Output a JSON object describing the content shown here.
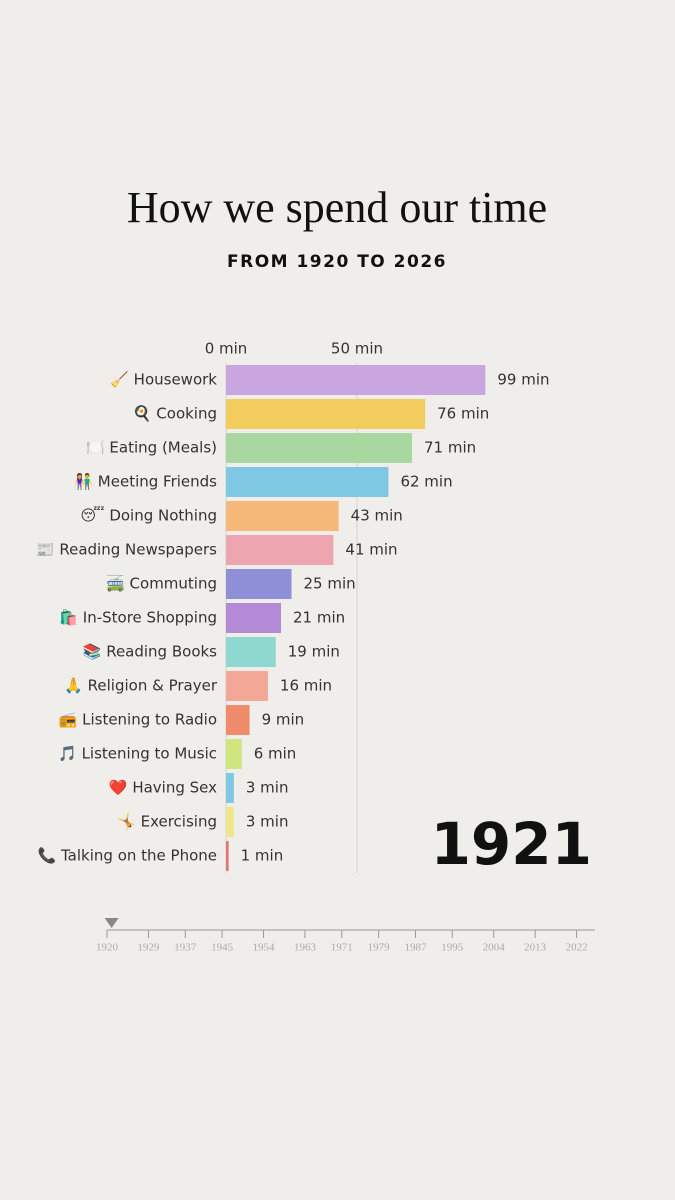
{
  "chart_data": {
    "type": "bar",
    "orientation": "horizontal",
    "title": "How we spend our time",
    "subtitle": "FROM 1920 TO 2026",
    "categories": [
      "🧹 Housework",
      "🍳 Cooking",
      "🍽️ Eating (Meals)",
      "👫 Meeting Friends",
      "😴 Doing Nothing",
      "📰 Reading Newspapers",
      "🚎 Commuting",
      "🛍️ In-Store Shopping",
      "📚 Reading Books",
      "🙏 Religion & Prayer",
      "📻 Listening to Radio",
      "🎵 Listening to Music",
      "❤️ Having Sex",
      "🤸 Exercising",
      "📞 Talking on the Phone"
    ],
    "values": [
      99,
      76,
      71,
      62,
      43,
      41,
      25,
      21,
      19,
      16,
      9,
      6,
      3,
      3,
      1
    ],
    "value_labels": [
      "99 min",
      "76 min",
      "71 min",
      "62 min",
      "43 min",
      "41 min",
      "25 min",
      "21 min",
      "19 min",
      "16 min",
      "9 min",
      "6 min",
      "3 min",
      "3 min",
      "1 min"
    ],
    "colors": [
      "#c9a6e0",
      "#f2cc5c",
      "#a8d8a0",
      "#7ec8e3",
      "#f6b97a",
      "#eda5b0",
      "#8e8fd6",
      "#b48ad6",
      "#8ed8cf",
      "#f2a797",
      "#ef8a6a",
      "#cfe57f",
      "#7ec8e3",
      "#f0e68c",
      "#e57373"
    ],
    "xlim": [
      0,
      100
    ],
    "xticks": [
      {
        "value": 0,
        "label": "0 min"
      },
      {
        "value": 50,
        "label": "50 min"
      }
    ],
    "grid": true,
    "timeline": {
      "xlim": [
        1920,
        2026
      ],
      "xticks": [
        1920,
        1929,
        1937,
        1945,
        1954,
        1963,
        1971,
        1979,
        1987,
        1995,
        2004,
        2013,
        2022
      ],
      "current": 1921
    }
  }
}
